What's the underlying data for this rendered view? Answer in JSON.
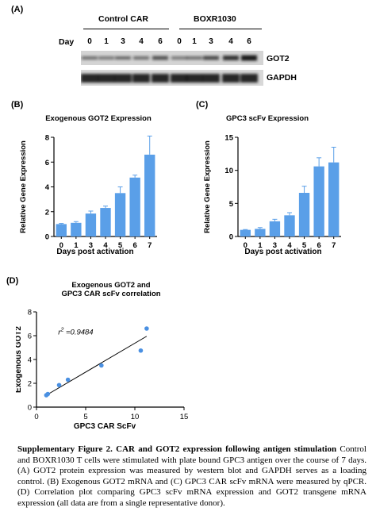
{
  "panelA": {
    "label": "(A)",
    "group_control": "Control CAR",
    "group_boxr": "BOXR1030",
    "day_label": "Day",
    "days": [
      "0",
      "1",
      "3",
      "4",
      "6",
      "0",
      "1",
      "3",
      "4",
      "6"
    ],
    "bands": [
      "GOT2",
      "GAPDH"
    ]
  },
  "panelB": {
    "label": "(B)",
    "title": "Exogenous GOT2 Expression",
    "ylabel": "Relative Gene Expression",
    "xlabel": "Days post activation"
  },
  "panelC": {
    "label": "(C)",
    "title": "GPC3 scFv Expression",
    "ylabel": "Relative Gene Expression",
    "xlabel": "Days post activation"
  },
  "panelD": {
    "label": "(D)",
    "title_line1": "Exogenous GOT2 and",
    "title_line2": "GPC3 CAR scFv correlation",
    "ylabel": "Exogenous GOT2",
    "xlabel": "GPC3 CAR ScFv",
    "r2_label": "r",
    "r2_exp": "2",
    "r2_value": " =0.9484"
  },
  "caption": {
    "bold": "Supplementary Figure 2. CAR and GOT2 expression following antigen stimulation",
    "text": " Control and BOXR1030 T cells were stimulated with plate bound GPC3 antigen over the course of 7 days. (A) GOT2 protein expression was measured by western blot and GAPDH serves as a loading control. (B) Exogenous GOT2 mRNA and (C) GPC3 CAR scFv mRNA were measured by qPCR. (D) Correlation plot comparing GPC3 scFv mRNA expression and GOT2 transgene mRNA expression (all data are from a single representative donor)."
  },
  "colors": {
    "bar": "#5a9fe8",
    "point": "#4a90e2",
    "blot_band": "#1a1a1a"
  },
  "chart_data": [
    {
      "type": "bar",
      "title": "Exogenous GOT2 Expression",
      "xlabel": "Days post activation",
      "ylabel": "Relative Gene Expression",
      "categories": [
        "0",
        "1",
        "3",
        "4",
        "5",
        "6",
        "7"
      ],
      "values": [
        1.0,
        1.1,
        1.85,
        2.3,
        3.5,
        4.75,
        6.6
      ],
      "errors": [
        0.05,
        0.1,
        0.2,
        0.15,
        0.5,
        0.2,
        1.5
      ],
      "ylim": [
        0,
        8
      ],
      "yticks": [
        0,
        2,
        4,
        6,
        8
      ]
    },
    {
      "type": "bar",
      "title": "GPC3 scFv Expression",
      "xlabel": "Days post activation",
      "ylabel": "Relative Gene Expression",
      "categories": [
        "0",
        "1",
        "3",
        "4",
        "5",
        "6",
        "7"
      ],
      "values": [
        1.0,
        1.15,
        2.3,
        3.2,
        6.6,
        10.6,
        11.2
      ],
      "errors": [
        0.05,
        0.2,
        0.3,
        0.4,
        1.0,
        1.3,
        2.3
      ],
      "ylim": [
        0,
        15
      ],
      "yticks": [
        0,
        5,
        10,
        15
      ]
    },
    {
      "type": "scatter",
      "title": "Exogenous GOT2 and GPC3 CAR scFv correlation",
      "xlabel": "GPC3 CAR ScFv",
      "ylabel": "Exogenous GOT2",
      "points": [
        {
          "x": 1.0,
          "y": 1.0
        },
        {
          "x": 1.15,
          "y": 1.1
        },
        {
          "x": 2.3,
          "y": 1.85
        },
        {
          "x": 3.2,
          "y": 2.3
        },
        {
          "x": 6.6,
          "y": 3.5
        },
        {
          "x": 10.6,
          "y": 4.75
        },
        {
          "x": 11.2,
          "y": 6.6
        }
      ],
      "fit": {
        "x0": 1.0,
        "y0": 1.0,
        "x1": 11.2,
        "y1": 5.95
      },
      "xlim": [
        0,
        15
      ],
      "ylim": [
        0,
        8
      ],
      "xticks": [
        0,
        5,
        10,
        15
      ],
      "yticks": [
        0,
        2,
        4,
        6,
        8
      ],
      "r2": 0.9484
    }
  ]
}
